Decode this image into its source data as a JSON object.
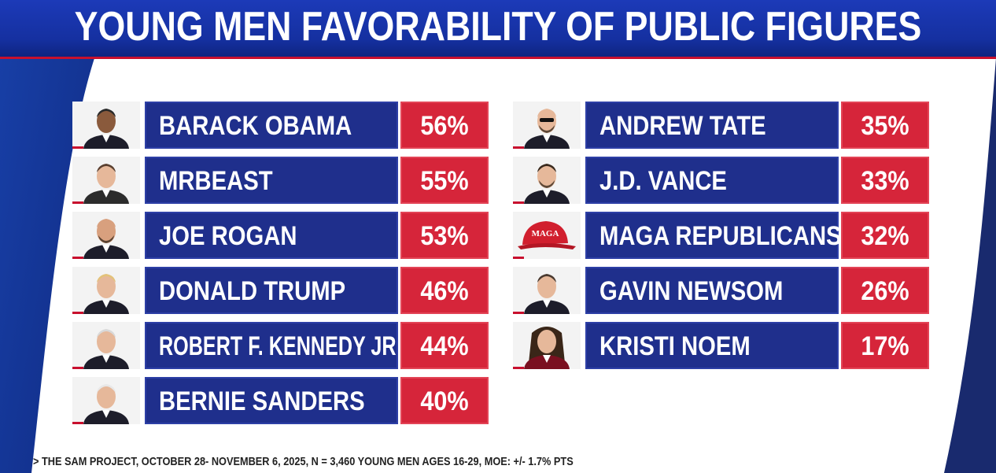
{
  "title": "YOUNG MEN FAVORABILITY OF PUBLIC FIGURES",
  "source": "> THE SAM PROJECT, OCTOBER 28- NOVEMBER 6, 2025, N = 3,460 YOUNG MEN AGES 16-29, MOE: +/- 1.7% PTS",
  "colors": {
    "name_box": "#1f2f8c",
    "pct_box": "#d6253a",
    "title_bar": "#1530a0",
    "accent_red": "#c8102e"
  },
  "hat_text": "MAGA",
  "chart_data": {
    "type": "table",
    "title": "YOUNG MEN FAVORABILITY OF PUBLIC FIGURES",
    "columns": [
      {
        "items": [
          {
            "name": "BARACK OBAMA",
            "value": 56,
            "label": "56%",
            "icon": "portrait-obama"
          },
          {
            "name": "MRBEAST",
            "value": 55,
            "label": "55%",
            "icon": "portrait-mrbeast"
          },
          {
            "name": "JOE ROGAN",
            "value": 53,
            "label": "53%",
            "icon": "portrait-rogan"
          },
          {
            "name": "DONALD TRUMP",
            "value": 46,
            "label": "46%",
            "icon": "portrait-trump"
          },
          {
            "name": "ROBERT F. KENNEDY JR",
            "value": 44,
            "label": "44%",
            "icon": "portrait-rfk"
          },
          {
            "name": "BERNIE SANDERS",
            "value": 40,
            "label": "40%",
            "icon": "portrait-sanders"
          }
        ]
      },
      {
        "items": [
          {
            "name": "ANDREW TATE",
            "value": 35,
            "label": "35%",
            "icon": "portrait-tate"
          },
          {
            "name": "J.D. VANCE",
            "value": 33,
            "label": "33%",
            "icon": "portrait-vance"
          },
          {
            "name": "MAGA REPUBLICANS",
            "value": 32,
            "label": "32%",
            "icon": "maga-hat-icon"
          },
          {
            "name": "GAVIN NEWSOM",
            "value": 26,
            "label": "26%",
            "icon": "portrait-newsom"
          },
          {
            "name": "KRISTI NOEM",
            "value": 17,
            "label": "17%",
            "icon": "portrait-noem"
          }
        ]
      }
    ]
  }
}
